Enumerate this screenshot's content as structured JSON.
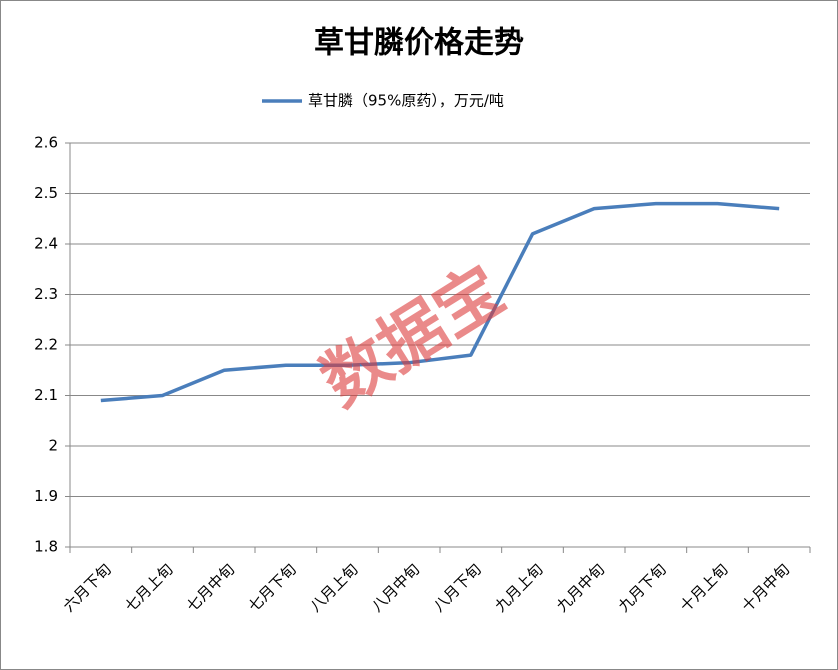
{
  "chart_data": {
    "type": "line",
    "title": "草甘膦价格走势",
    "watermark": "数据宝",
    "categories": [
      "六月下旬",
      "七月上旬",
      "七月中旬",
      "七月下旬",
      "八月上旬",
      "八月中旬",
      "八月下旬",
      "九月上旬",
      "九月中旬",
      "九月下旬",
      "十月上旬",
      "十月中旬"
    ],
    "series": [
      {
        "name": "草甘膦（95%原药），万元/吨",
        "color": "#4a7ebb",
        "values": [
          2.09,
          2.1,
          2.15,
          2.16,
          2.16,
          2.165,
          2.18,
          2.42,
          2.47,
          2.48,
          2.48,
          2.47
        ]
      }
    ],
    "ylim": [
      1.8,
      2.6
    ],
    "yticks": [
      1.8,
      1.9,
      2,
      2.1,
      2.2,
      2.3,
      2.4,
      2.5,
      2.6
    ],
    "grid": true,
    "legend": "top"
  }
}
